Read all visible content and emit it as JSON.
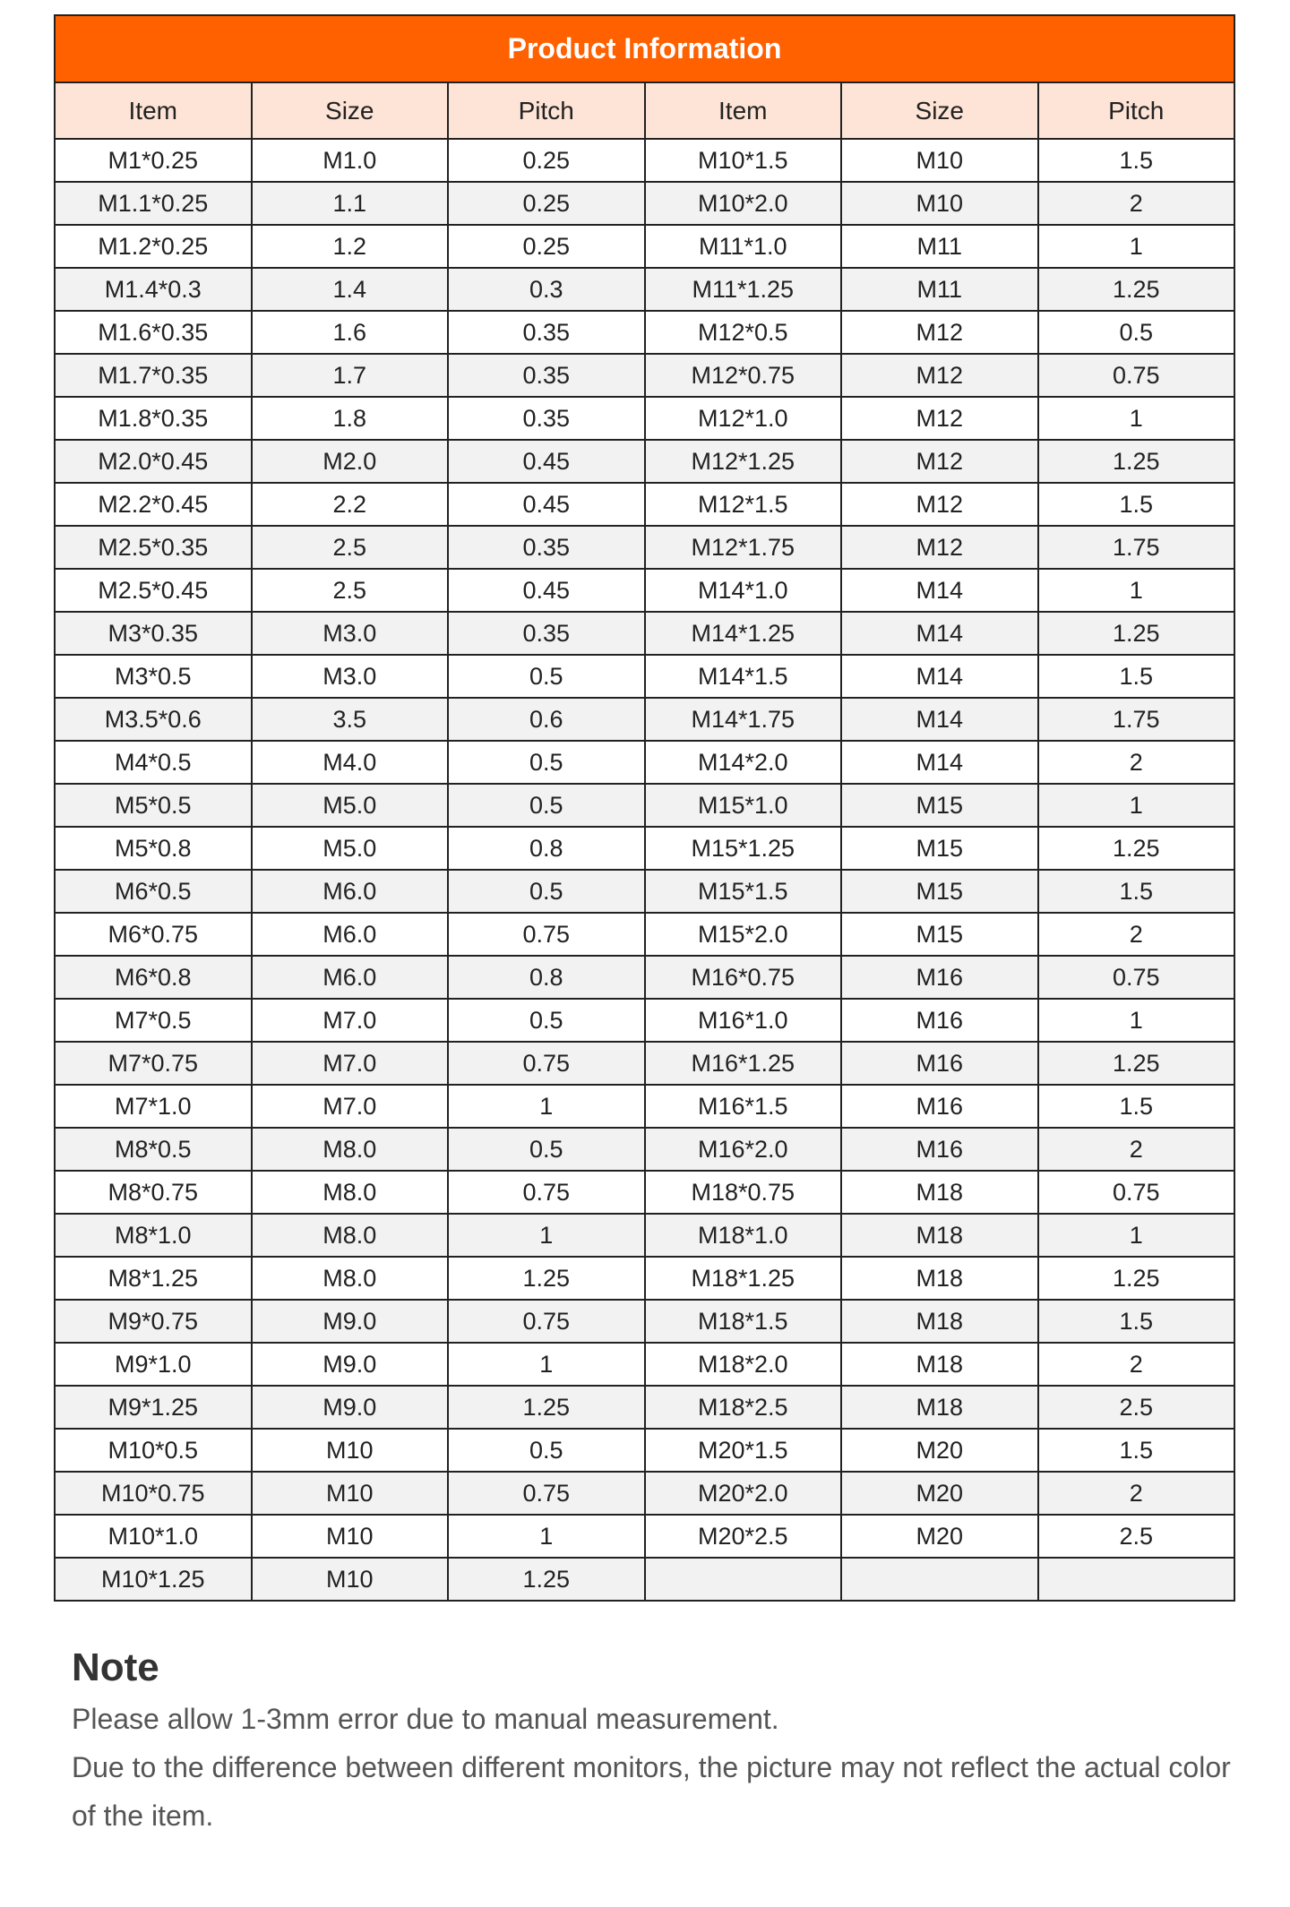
{
  "title": "Product Information",
  "columns": [
    "Item",
    "Size",
    "Pitch",
    "Item",
    "Size",
    "Pitch"
  ],
  "rows": [
    [
      "M1*0.25",
      "M1.0",
      "0.25",
      "M10*1.5",
      "M10",
      "1.5"
    ],
    [
      "M1.1*0.25",
      "1.1",
      "0.25",
      "M10*2.0",
      "M10",
      "2"
    ],
    [
      "M1.2*0.25",
      "1.2",
      "0.25",
      "M11*1.0",
      "M11",
      "1"
    ],
    [
      "M1.4*0.3",
      "1.4",
      "0.3",
      "M11*1.25",
      "M11",
      "1.25"
    ],
    [
      "M1.6*0.35",
      "1.6",
      "0.35",
      "M12*0.5",
      "M12",
      "0.5"
    ],
    [
      "M1.7*0.35",
      "1.7",
      "0.35",
      "M12*0.75",
      "M12",
      "0.75"
    ],
    [
      "M1.8*0.35",
      "1.8",
      "0.35",
      "M12*1.0",
      "M12",
      "1"
    ],
    [
      "M2.0*0.45",
      "M2.0",
      "0.45",
      "M12*1.25",
      "M12",
      "1.25"
    ],
    [
      "M2.2*0.45",
      "2.2",
      "0.45",
      "M12*1.5",
      "M12",
      "1.5"
    ],
    [
      "M2.5*0.35",
      "2.5",
      "0.35",
      "M12*1.75",
      "M12",
      "1.75"
    ],
    [
      "M2.5*0.45",
      "2.5",
      "0.45",
      "M14*1.0",
      "M14",
      "1"
    ],
    [
      "M3*0.35",
      "M3.0",
      "0.35",
      "M14*1.25",
      "M14",
      "1.25"
    ],
    [
      "M3*0.5",
      "M3.0",
      "0.5",
      "M14*1.5",
      "M14",
      "1.5"
    ],
    [
      "M3.5*0.6",
      "3.5",
      "0.6",
      "M14*1.75",
      "M14",
      "1.75"
    ],
    [
      "M4*0.5",
      "M4.0",
      "0.5",
      "M14*2.0",
      "M14",
      "2"
    ],
    [
      "M5*0.5",
      "M5.0",
      "0.5",
      "M15*1.0",
      "M15",
      "1"
    ],
    [
      "M5*0.8",
      "M5.0",
      "0.8",
      "M15*1.25",
      "M15",
      "1.25"
    ],
    [
      "M6*0.5",
      "M6.0",
      "0.5",
      "M15*1.5",
      "M15",
      "1.5"
    ],
    [
      "M6*0.75",
      "M6.0",
      "0.75",
      "M15*2.0",
      "M15",
      "2"
    ],
    [
      "M6*0.8",
      "M6.0",
      "0.8",
      "M16*0.75",
      "M16",
      "0.75"
    ],
    [
      "M7*0.5",
      "M7.0",
      "0.5",
      "M16*1.0",
      "M16",
      "1"
    ],
    [
      "M7*0.75",
      "M7.0",
      "0.75",
      "M16*1.25",
      "M16",
      "1.25"
    ],
    [
      "M7*1.0",
      "M7.0",
      "1",
      "M16*1.5",
      "M16",
      "1.5"
    ],
    [
      "M8*0.5",
      "M8.0",
      "0.5",
      "M16*2.0",
      "M16",
      "2"
    ],
    [
      "M8*0.75",
      "M8.0",
      "0.75",
      "M18*0.75",
      "M18",
      "0.75"
    ],
    [
      "M8*1.0",
      "M8.0",
      "1",
      "M18*1.0",
      "M18",
      "1"
    ],
    [
      "M8*1.25",
      "M8.0",
      "1.25",
      "M18*1.25",
      "M18",
      "1.25"
    ],
    [
      "M9*0.75",
      "M9.0",
      "0.75",
      "M18*1.5",
      "M18",
      "1.5"
    ],
    [
      "M9*1.0",
      "M9.0",
      "1",
      "M18*2.0",
      "M18",
      "2"
    ],
    [
      "M9*1.25",
      "M9.0",
      "1.25",
      "M18*2.5",
      "M18",
      "2.5"
    ],
    [
      "M10*0.5",
      "M10",
      "0.5",
      "M20*1.5",
      "M20",
      "1.5"
    ],
    [
      "M10*0.75",
      "M10",
      "0.75",
      "M20*2.0",
      "M20",
      "2"
    ],
    [
      "M10*1.0",
      "M10",
      "1",
      "M20*2.5",
      "M20",
      "2.5"
    ],
    [
      "M10*1.25",
      "M10",
      "1.25",
      "",
      "",
      ""
    ]
  ],
  "note": {
    "heading": "Note",
    "lines": [
      "Please allow 1-3mm error due to manual measurement.",
      "Due to the difference between different monitors, the picture may not reflect the actual color of the item."
    ]
  },
  "colors": {
    "title_bg": "#ff6000",
    "header_bg": "#fde4d6",
    "alt_row_bg": "#f2f2f2"
  }
}
